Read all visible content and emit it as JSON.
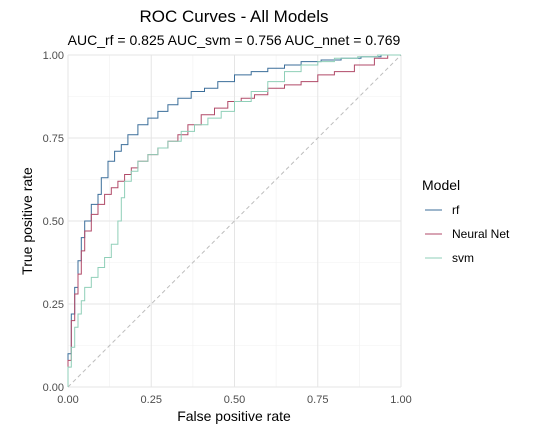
{
  "chart_data": {
    "type": "line",
    "title": "ROC Curves - All Models",
    "subtitle": "AUC_rf =  0.825 AUC_svm =  0.756 AUC_nnet =  0.769",
    "xlabel": "False positive rate",
    "ylabel": "True positive rate",
    "xlim": [
      0,
      1
    ],
    "ylim": [
      0,
      1
    ],
    "x_ticks": [
      "0.00",
      "0.25",
      "0.50",
      "0.75",
      "1.00"
    ],
    "y_ticks": [
      "0.00",
      "0.25",
      "0.50",
      "0.75",
      "1.00"
    ],
    "grid": true,
    "legend": {
      "title": "Model",
      "placement": "right"
    },
    "diagonal_reference": true,
    "series": [
      {
        "name": "rf",
        "color": "#3b6e9a",
        "points": [
          [
            0,
            0
          ],
          [
            0,
            0.05
          ],
          [
            0.01,
            0.1
          ],
          [
            0.02,
            0.22
          ],
          [
            0.03,
            0.3
          ],
          [
            0.04,
            0.38
          ],
          [
            0.05,
            0.45
          ],
          [
            0.07,
            0.5
          ],
          [
            0.09,
            0.55
          ],
          [
            0.1,
            0.58
          ],
          [
            0.12,
            0.63
          ],
          [
            0.14,
            0.68
          ],
          [
            0.16,
            0.71
          ],
          [
            0.18,
            0.73
          ],
          [
            0.21,
            0.76
          ],
          [
            0.24,
            0.79
          ],
          [
            0.27,
            0.81
          ],
          [
            0.3,
            0.83
          ],
          [
            0.33,
            0.85
          ],
          [
            0.37,
            0.87
          ],
          [
            0.41,
            0.89
          ],
          [
            0.45,
            0.9
          ],
          [
            0.5,
            0.92
          ],
          [
            0.55,
            0.94
          ],
          [
            0.6,
            0.95
          ],
          [
            0.65,
            0.96
          ],
          [
            0.7,
            0.97
          ],
          [
            0.76,
            0.98
          ],
          [
            0.82,
            0.985
          ],
          [
            0.88,
            0.99
          ],
          [
            0.94,
            0.995
          ],
          [
            1,
            1
          ]
        ]
      },
      {
        "name": "Neural Net",
        "color": "#b14a68",
        "points": [
          [
            0,
            0
          ],
          [
            0,
            0.04
          ],
          [
            0.01,
            0.08
          ],
          [
            0.02,
            0.2
          ],
          [
            0.03,
            0.28
          ],
          [
            0.04,
            0.34
          ],
          [
            0.05,
            0.41
          ],
          [
            0.07,
            0.47
          ],
          [
            0.09,
            0.52
          ],
          [
            0.11,
            0.55
          ],
          [
            0.13,
            0.58
          ],
          [
            0.15,
            0.6
          ],
          [
            0.17,
            0.62
          ],
          [
            0.19,
            0.64
          ],
          [
            0.21,
            0.66
          ],
          [
            0.24,
            0.68
          ],
          [
            0.27,
            0.7
          ],
          [
            0.3,
            0.72
          ],
          [
            0.33,
            0.74
          ],
          [
            0.36,
            0.76
          ],
          [
            0.4,
            0.79
          ],
          [
            0.44,
            0.82
          ],
          [
            0.48,
            0.84
          ],
          [
            0.52,
            0.86
          ],
          [
            0.56,
            0.87
          ],
          [
            0.6,
            0.88
          ],
          [
            0.65,
            0.9
          ],
          [
            0.7,
            0.91
          ],
          [
            0.75,
            0.92
          ],
          [
            0.8,
            0.94
          ],
          [
            0.86,
            0.95
          ],
          [
            0.92,
            0.97
          ],
          [
            0.96,
            0.99
          ],
          [
            1,
            1
          ]
        ]
      },
      {
        "name": "svm",
        "color": "#8fcfb8",
        "points": [
          [
            0,
            0
          ],
          [
            0,
            0.03
          ],
          [
            0.01,
            0.06
          ],
          [
            0.02,
            0.12
          ],
          [
            0.03,
            0.18
          ],
          [
            0.04,
            0.22
          ],
          [
            0.05,
            0.26
          ],
          [
            0.07,
            0.3
          ],
          [
            0.09,
            0.33
          ],
          [
            0.11,
            0.36
          ],
          [
            0.13,
            0.39
          ],
          [
            0.15,
            0.43
          ],
          [
            0.16,
            0.5
          ],
          [
            0.17,
            0.57
          ],
          [
            0.19,
            0.62
          ],
          [
            0.21,
            0.65
          ],
          [
            0.24,
            0.68
          ],
          [
            0.27,
            0.7
          ],
          [
            0.3,
            0.72
          ],
          [
            0.34,
            0.74
          ],
          [
            0.38,
            0.77
          ],
          [
            0.42,
            0.79
          ],
          [
            0.46,
            0.81
          ],
          [
            0.5,
            0.83
          ],
          [
            0.55,
            0.86
          ],
          [
            0.6,
            0.89
          ],
          [
            0.65,
            0.92
          ],
          [
            0.7,
            0.95
          ],
          [
            0.75,
            0.97
          ],
          [
            0.8,
            0.98
          ],
          [
            0.87,
            0.99
          ],
          [
            0.93,
            0.995
          ],
          [
            1,
            1
          ]
        ]
      }
    ]
  }
}
